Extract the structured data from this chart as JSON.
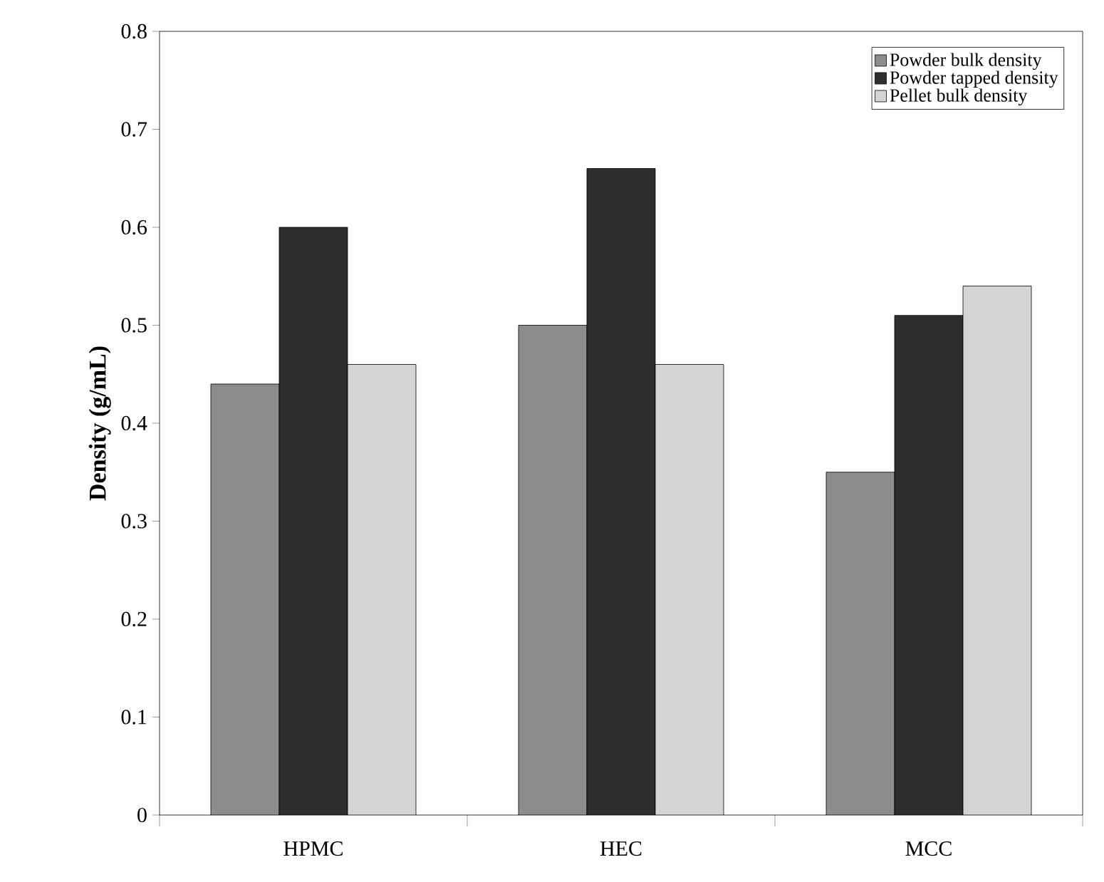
{
  "chart_data": {
    "type": "bar",
    "ylabel": "Density (g/mL)",
    "categories": [
      "HPMC",
      "HEC",
      "MCC"
    ],
    "series": [
      {
        "name": "Powder bulk density",
        "color": "#8c8c8c",
        "values": [
          0.44,
          0.5,
          0.35
        ]
      },
      {
        "name": "Powder  tapped density",
        "color": "#2e2e2e",
        "values": [
          0.6,
          0.66,
          0.51
        ]
      },
      {
        "name": "Pellet bulk density",
        "color": "#d4d4d4",
        "values": [
          0.46,
          0.46,
          0.54
        ]
      }
    ],
    "ylim": [
      0,
      0.8
    ],
    "yticks": [
      0,
      0.1,
      0.2,
      0.3,
      0.4,
      0.5,
      0.6,
      0.7,
      0.8
    ],
    "grid": false,
    "legend": "top right"
  }
}
